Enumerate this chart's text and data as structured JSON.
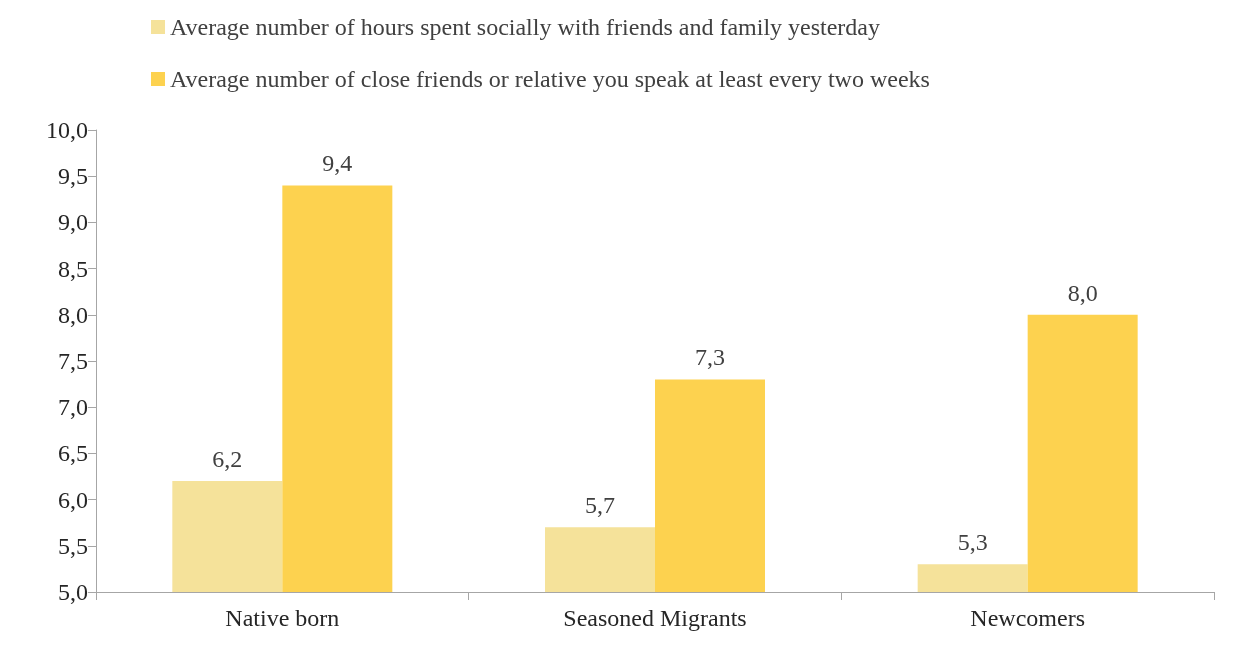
{
  "chart_data": {
    "type": "bar",
    "categories": [
      "Native born",
      "Seasoned Migrants",
      "Newcomers"
    ],
    "series": [
      {
        "name": "Average number of hours spent socially with friends and family yesterday",
        "color": "#f5e29a",
        "values": [
          6.2,
          5.7,
          5.3
        ],
        "value_labels": [
          "6,2",
          "5,7",
          "5,3"
        ]
      },
      {
        "name": "Average number of close friends or relative you speak at least every two weeks",
        "color": "#fdd24f",
        "values": [
          9.4,
          7.3,
          8.0
        ],
        "value_labels": [
          "9,4",
          "7,3",
          "8,0"
        ]
      }
    ],
    "ylim": [
      5,
      10
    ],
    "yticks": [
      {
        "value": 5,
        "label": "5,0"
      },
      {
        "value": 5.5,
        "label": "5,5"
      },
      {
        "value": 6,
        "label": "6,0"
      },
      {
        "value": 6.5,
        "label": "6,5"
      },
      {
        "value": 7,
        "label": "7,0"
      },
      {
        "value": 7.5,
        "label": "7,5"
      },
      {
        "value": 8,
        "label": "8,0"
      },
      {
        "value": 8.5,
        "label": "8,5"
      },
      {
        "value": 9,
        "label": "9,0"
      },
      {
        "value": 9.5,
        "label": "9,5"
      },
      {
        "value": 10,
        "label": "10,0"
      }
    ],
    "grid": false,
    "legend": "top left"
  }
}
